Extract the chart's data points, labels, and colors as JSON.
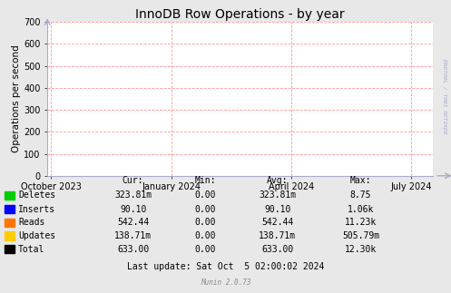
{
  "title": "InnoDB Row Operations - by year",
  "ylabel": "Operations per second",
  "ylim": [
    0,
    700
  ],
  "yticks": [
    0,
    100,
    200,
    300,
    400,
    500,
    600,
    700
  ],
  "bg_color": "#e8e8e8",
  "plot_bg_color": "#ffffff",
  "grid_color": "#ff9999",
  "axis_color": "#aaaacc",
  "x_tick_labels": [
    "October 2023",
    "January 2024",
    "April 2024",
    "July 2024"
  ],
  "legend_entries": [
    {
      "label": "Deletes",
      "color": "#00cc00"
    },
    {
      "label": "Inserts",
      "color": "#0000ff"
    },
    {
      "label": "Reads",
      "color": "#ff7700"
    },
    {
      "label": "Updates",
      "color": "#ffcc00"
    },
    {
      "label": "Total",
      "color": "#000000"
    }
  ],
  "table_headers": [
    "Cur:",
    "Min:",
    "Avg:",
    "Max:"
  ],
  "table_data": [
    [
      "323.81m",
      "0.00",
      "323.81m",
      "8.75"
    ],
    [
      "90.10",
      "0.00",
      "90.10",
      "1.06k"
    ],
    [
      "542.44",
      "0.00",
      "542.44",
      "11.23k"
    ],
    [
      "138.71m",
      "0.00",
      "138.71m",
      "505.79m"
    ],
    [
      "633.00",
      "0.00",
      "633.00",
      "12.30k"
    ]
  ],
  "last_update": "Last update: Sat Oct  5 02:00:02 2024",
  "munin_label": "Munin 2.0.73",
  "rrdtool_label": "RRDTOOL / TOBI OETIKER",
  "title_fontsize": 10,
  "axis_label_fontsize": 7.5,
  "tick_fontsize": 7,
  "table_fontsize": 7
}
